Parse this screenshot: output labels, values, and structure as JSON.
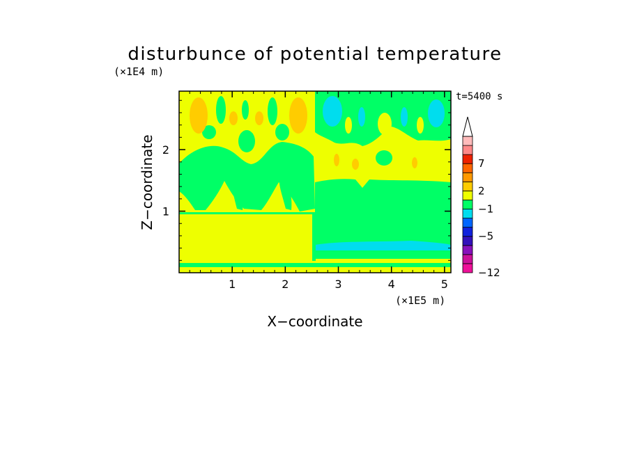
{
  "chart_data": {
    "type": "heatmap",
    "title": "disturbunce of potential temperature",
    "xlabel": "X−coordinate",
    "ylabel": "Z−coordinate",
    "x_unit": "(×1E5 m)",
    "y_unit": "(×1E4 m)",
    "time_label": "t=5400 s",
    "xlim": [
      0,
      5.12
    ],
    "ylim": [
      0,
      2.95
    ],
    "x_ticks": [
      1,
      2,
      3,
      4,
      5
    ],
    "y_ticks": [
      1,
      2
    ],
    "x_tick_labels": [
      "1",
      "2",
      "3",
      "4",
      "5"
    ],
    "y_tick_labels": [
      "1",
      "2"
    ],
    "colorbar": {
      "levels": [
        "−12",
        "−5",
        "−1",
        "2",
        "7"
      ],
      "colors": [
        "#ee1199",
        "#cc1199",
        "#8811bb",
        "#3311bb",
        "#1122dd",
        "#0066ff",
        "#00ddee",
        "#00ff66",
        "#eeff00",
        "#ffcc00",
        "#ff9900",
        "#ff6600",
        "#ee2200",
        "#ff8888",
        "#ffbbbb"
      ]
    },
    "colors": {
      "yellow": "#eeff00",
      "green": "#00ff66",
      "cyan": "#00ddee",
      "orange": "#ffcc00",
      "light_orange": "#ffdd22"
    }
  }
}
